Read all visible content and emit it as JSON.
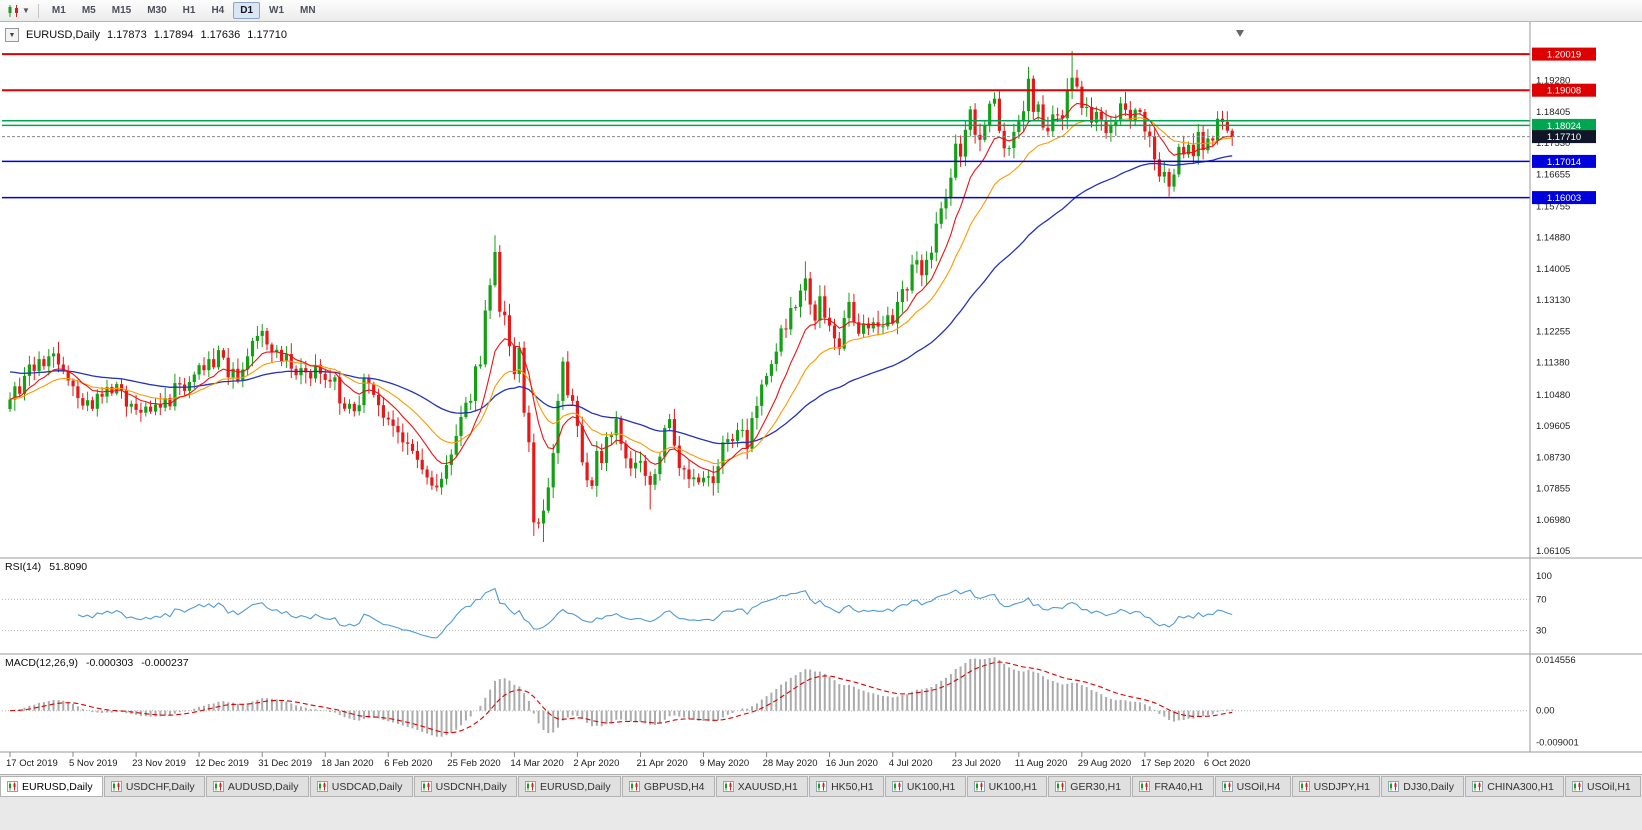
{
  "toolbar": {
    "chart_icon": "candlestick-chart-icon",
    "dropdown_icon": "chevron-down-icon",
    "timeframes": [
      "M1",
      "M5",
      "M15",
      "M30",
      "H1",
      "H4",
      "D1",
      "W1",
      "MN"
    ],
    "selected_timeframe": "D1"
  },
  "chart": {
    "header": {
      "collapse_icon": "▼",
      "symbol": "EURUSD,Daily",
      "ohlc": [
        "1.17873",
        "1.17894",
        "1.17636",
        "1.17710"
      ]
    },
    "level_lines": [
      {
        "price": 1.20019,
        "label": "1.20019",
        "color": "#dd0000",
        "labeled": true
      },
      {
        "price": 1.19008,
        "label": "1.19008",
        "color": "#dd0000",
        "labeled": true
      },
      {
        "price": 1.18155,
        "label": "1.18155",
        "color": "#00a550",
        "labeled": false
      },
      {
        "price": 1.18024,
        "label": "1.18024",
        "color": "#00a550",
        "labeled": true
      },
      {
        "price": 1.17014,
        "label": "1.17014",
        "color": "#0000dd",
        "labeled": true
      },
      {
        "price": 1.16003,
        "label": "1.16003",
        "color": "#0000dd",
        "labeled": true
      }
    ],
    "current_price": {
      "value": 1.1771,
      "label": "1.17710",
      "box_color": "#101628"
    },
    "price_axis_ticks": [
      "1.19280",
      "1.18405",
      "1.17530",
      "1.16655",
      "1.15755",
      "1.14880",
      "1.14005",
      "1.13130",
      "1.12255",
      "1.11380",
      "1.10480",
      "1.09605",
      "1.08730",
      "1.07855",
      "1.06980",
      "1.06105"
    ],
    "time_axis_labels": [
      "17 Oct 2019",
      "5 Nov 2019",
      "23 Nov 2019",
      "12 Dec 2019",
      "31 Dec 2019",
      "18 Jan 2020",
      "6 Feb 2020",
      "25 Feb 2020",
      "14 Mar 2020",
      "2 Apr 2020",
      "21 Apr 2020",
      "9 May 2020",
      "28 May 2020",
      "16 Jun 2020",
      "4 Jul 2020",
      "23 Jul 2020",
      "11 Aug 2020",
      "29 Aug 2020",
      "17 Sep 2020",
      "6 Oct 2020"
    ]
  },
  "rsi": {
    "title": "RSI(14)",
    "value": "51.8090",
    "axis_labels": [
      "100",
      "70",
      "30"
    ],
    "dotted_levels": [
      70,
      30
    ],
    "line_color": "#4f9bd9"
  },
  "macd": {
    "title": "MACD(12,26,9)",
    "values": [
      "-0.000303",
      "-0.000237"
    ],
    "axis_top": "0.014556",
    "axis_zero": "0.00",
    "axis_bottom": "-0.009001",
    "histogram_color": "#ababab",
    "signal_color": "#dd0000"
  },
  "bottom_tabs": {
    "active_index": 0,
    "tabs": [
      "EURUSD,Daily",
      "USDCHF,Daily",
      "AUDUSD,Daily",
      "USDCAD,Daily",
      "USDCNH,Daily",
      "EURUSD,Daily",
      "GBPUSD,H4",
      "XAUUSD,H1",
      "HK50,H1",
      "UK100,H1",
      "UK100,H1",
      "GER30,H1",
      "FRA40,H1",
      "USOil,H4",
      "USDJPY,H1",
      "DJ30,Daily",
      "CHINA300,H1",
      "USOil,H1"
    ]
  },
  "chart_data": {
    "type": "candlestick",
    "symbol": "EURUSD",
    "timeframe": "Daily",
    "x_range": [
      "17 Oct 2019",
      "14 Oct 2020"
    ],
    "y_range": [
      1.0599,
      1.2077
    ],
    "first_open": 1.1008,
    "closes": [
      1.1035,
      1.1072,
      1.1051,
      1.1101,
      1.1133,
      1.1115,
      1.1148,
      1.1128,
      1.1156,
      1.1164,
      1.1133,
      1.1115,
      1.1088,
      1.1072,
      1.1039,
      1.1018,
      1.1033,
      1.1009,
      1.1051,
      1.1043,
      1.107,
      1.1052,
      1.1078,
      1.1061,
      1.1015,
      1.1023,
      1.1006,
      1.0998,
      1.1015,
      1.1001,
      1.1021,
      1.1012,
      1.1039,
      1.1016,
      1.1081,
      1.1077,
      1.1059,
      1.1084,
      1.1105,
      1.1131,
      1.1117,
      1.1148,
      1.1125,
      1.1173,
      1.1152,
      1.1097,
      1.1121,
      1.1087,
      1.1119,
      1.1156,
      1.1199,
      1.1213,
      1.1227,
      1.1189,
      1.1167,
      1.1174,
      1.1142,
      1.1162,
      1.1121,
      1.1103,
      1.1123,
      1.1111,
      1.1094,
      1.1132,
      1.1107,
      1.109,
      1.1085,
      1.1097,
      1.1024,
      1.1009,
      1.1023,
      1.1002,
      1.1019,
      1.1094,
      1.1079,
      1.1048,
      1.1019,
      1.0984,
      1.0979,
      1.0961,
      1.0943,
      1.0915,
      1.0911,
      1.0891,
      1.0866,
      1.0839,
      1.0817,
      1.0794,
      1.0789,
      1.0813,
      1.0852,
      1.0881,
      1.0933,
      1.0986,
      1.1026,
      1.1031,
      1.1128,
      1.1133,
      1.1284,
      1.1355,
      1.1448,
      1.1281,
      1.1271,
      1.1184,
      1.1106,
      1.118,
      1.0998,
      1.0915,
      1.0691,
      1.0688,
      1.0724,
      1.0789,
      1.0885,
      1.1031,
      1.1141,
      1.1047,
      1.1031,
      1.0961,
      1.0859,
      1.0809,
      1.0793,
      1.0891,
      1.0857,
      1.093,
      1.0935,
      1.0981,
      1.0911,
      1.087,
      1.0842,
      1.0858,
      1.0863,
      1.0821,
      1.0796,
      1.0826,
      1.0875,
      1.0955,
      1.098,
      1.0906,
      1.0843,
      1.0839,
      1.0812,
      1.0817,
      1.0803,
      1.0816,
      1.082,
      1.0801,
      1.0848,
      1.0915,
      1.0924,
      1.0919,
      1.0949,
      1.095,
      1.0897,
      1.0983,
      1.1017,
      1.1077,
      1.1101,
      1.1134,
      1.1169,
      1.1234,
      1.1231,
      1.1291,
      1.1294,
      1.134,
      1.1374,
      1.1301,
      1.1256,
      1.1324,
      1.1264,
      1.1242,
      1.1206,
      1.1177,
      1.1263,
      1.1308,
      1.1251,
      1.1219,
      1.1248,
      1.1234,
      1.1251,
      1.1239,
      1.124,
      1.1271,
      1.1248,
      1.1308,
      1.1344,
      1.134,
      1.1413,
      1.1425,
      1.1383,
      1.1426,
      1.1446,
      1.1527,
      1.157,
      1.1598,
      1.1656,
      1.1751,
      1.1715,
      1.179,
      1.1847,
      1.1776,
      1.1762,
      1.1803,
      1.1863,
      1.1877,
      1.1787,
      1.1738,
      1.1739,
      1.1784,
      1.1813,
      1.1842,
      1.1933,
      1.184,
      1.1861,
      1.1796,
      1.1786,
      1.1833,
      1.1831,
      1.1822,
      1.1903,
      1.1936,
      1.1911,
      1.1851,
      1.1854,
      1.181,
      1.184,
      1.1817,
      1.1781,
      1.1801,
      1.1815,
      1.1864,
      1.1846,
      1.1816,
      1.1846,
      1.184,
      1.1785,
      1.1772,
      1.1707,
      1.1659,
      1.1672,
      1.1631,
      1.1665,
      1.1742,
      1.1721,
      1.1748,
      1.1716,
      1.1784,
      1.1733,
      1.1766,
      1.176,
      1.1821,
      1.1812,
      1.17873,
      1.1771
    ],
    "spike_highs": [
      [
        100,
        1.1495
      ],
      [
        164,
        1.1422
      ],
      [
        210,
        1.1966
      ],
      [
        219,
        1.2011
      ],
      [
        252,
        1.17894
      ]
    ],
    "spike_lows": [
      [
        88,
        1.0778
      ],
      [
        108,
        1.0653
      ],
      [
        110,
        1.0636
      ],
      [
        132,
        1.0727
      ],
      [
        145,
        1.0766
      ],
      [
        239,
        1.1612
      ],
      [
        252,
        1.17636
      ]
    ],
    "bull_color": "#14a014",
    "bear_color": "#e61919",
    "overlay_ma_lines": [
      {
        "name": "fast",
        "color": "#ee1111",
        "period": 10,
        "method": "ema"
      },
      {
        "name": "medium",
        "color": "#ff9900",
        "period": 21,
        "method": "ema"
      },
      {
        "name": "slow",
        "color": "#2233bb",
        "period": 55,
        "method": "ema"
      }
    ],
    "indicator_panes": [
      {
        "name": "RSI",
        "period": 14,
        "last_value": 51.809,
        "axis": [
          100,
          70,
          30
        ]
      },
      {
        "name": "MACD",
        "fast": 12,
        "slow": 26,
        "signal": 9,
        "last_values": [
          -0.000303,
          -0.000237
        ],
        "axis": [
          0.014556,
          0.0,
          -0.009001
        ]
      }
    ]
  }
}
